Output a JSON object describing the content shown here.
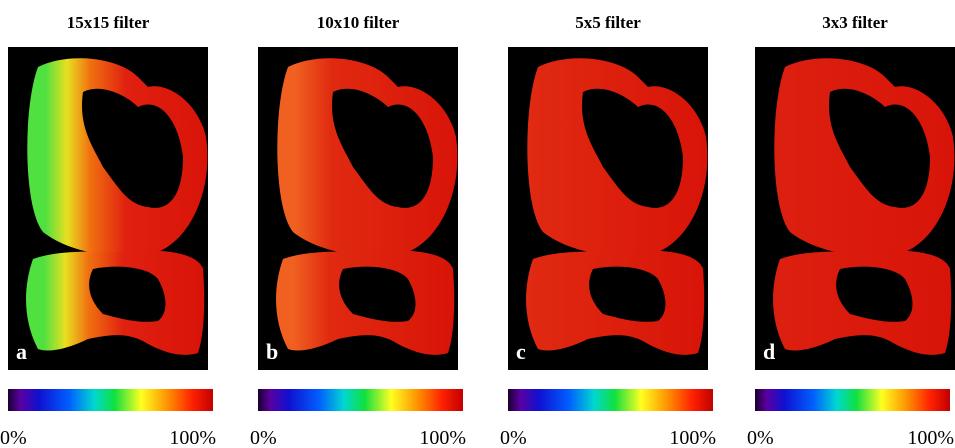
{
  "panels": [
    {
      "title": "15x15 filter",
      "letter": "a",
      "colorbar": {
        "min_label": "0%",
        "max_label": "100%"
      }
    },
    {
      "title": "10x10 filter",
      "letter": "b",
      "colorbar": {
        "min_label": "0%",
        "max_label": "100%"
      }
    },
    {
      "title": "5x5 filter",
      "letter": "c",
      "colorbar": {
        "min_label": "0%",
        "max_label": "100%"
      }
    },
    {
      "title": "3x3 filter",
      "letter": "d",
      "colorbar": {
        "min_label": "0%",
        "max_label": "100%"
      }
    }
  ]
}
